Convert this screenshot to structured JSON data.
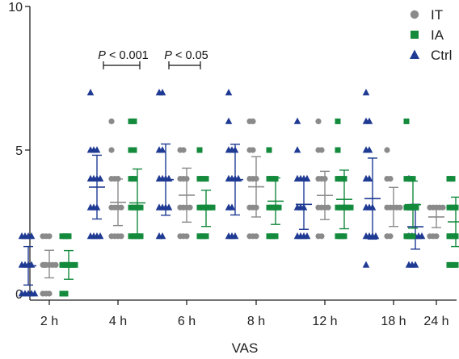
{
  "chart_data": {
    "type": "scatter",
    "xlabel": "VAS",
    "ylabel": "",
    "ylim": [
      0,
      10
    ],
    "yticks": [
      "0",
      "5",
      "10"
    ],
    "categories": [
      "2 h",
      "4 h",
      "6 h",
      "8 h",
      "12 h",
      "18 h",
      "24 h"
    ],
    "legend_position": "top-right",
    "grid": false,
    "annotations": [
      {
        "prefix": "P",
        "text": " < 0.001",
        "from": "4 h",
        "to": "6 h",
        "scope": "IT vs Ctrl"
      },
      {
        "prefix": "P",
        "text": " < 0.05",
        "from": "6 h",
        "to": "8 h",
        "scope": "IT vs Ctrl"
      }
    ],
    "series": [
      {
        "name": "Ctrl",
        "color": "#1f3a93",
        "marker": "triangle",
        "points": [
          [
            0,
            0,
            0,
            0,
            0,
            1,
            1,
            1,
            1,
            2,
            2,
            2,
            2
          ],
          [
            2,
            2,
            2,
            2,
            3,
            3,
            3,
            4,
            4,
            4,
            4,
            5,
            5,
            5,
            7
          ],
          [
            2,
            2,
            3,
            3,
            3,
            3,
            4,
            4,
            4,
            4,
            5,
            5,
            7,
            7
          ],
          [
            2,
            2,
            2,
            3,
            3,
            4,
            4,
            4,
            4,
            5,
            5,
            5,
            6,
            7
          ],
          [
            2,
            2,
            2,
            2,
            3,
            3,
            3,
            4,
            4,
            4,
            4,
            5,
            6
          ],
          [
            1,
            2,
            2,
            2,
            2,
            3,
            3,
            3,
            4,
            4,
            5,
            5,
            6,
            6,
            7
          ],
          [
            1,
            1,
            1,
            2,
            2,
            2,
            2,
            2,
            3,
            3,
            3,
            4
          ]
        ],
        "mean": [
          0.97,
          3.71,
          3.97,
          3.97,
          3.11,
          3.31,
          2.33
        ],
        "sd": [
          0.67,
          1.11,
          1.24,
          1.23,
          0.87,
          1.41,
          0.78
        ]
      },
      {
        "name": "IT",
        "color": "#8a8a8a",
        "marker": "circle",
        "points": [
          [
            0,
            0,
            0,
            1,
            1,
            1,
            1,
            1,
            1,
            2,
            2,
            2
          ],
          [
            2,
            2,
            2,
            2,
            3,
            3,
            3,
            3,
            4,
            4,
            4,
            5,
            6
          ],
          [
            2,
            2,
            2,
            3,
            3,
            3,
            3,
            4,
            4,
            4,
            5,
            5
          ],
          [
            2,
            2,
            2,
            3,
            3,
            3,
            4,
            4,
            4,
            5,
            5,
            6,
            6
          ],
          [
            2,
            2,
            3,
            3,
            3,
            3,
            4,
            4,
            4,
            5,
            5,
            6
          ],
          [
            2,
            2,
            3,
            3,
            3,
            3,
            3,
            4,
            4,
            5
          ],
          [
            2,
            2,
            2,
            3,
            3,
            3,
            3,
            3
          ]
        ],
        "mean": [
          1.03,
          3.18,
          3.43,
          3.72,
          3.42,
          3.02,
          2.67
        ],
        "sd": [
          0.48,
          0.81,
          0.94,
          1.05,
          0.84,
          0.68,
          0.37
        ]
      },
      {
        "name": "IA",
        "color": "#138a3c",
        "marker": "square",
        "points": [
          [
            0,
            0,
            1,
            1,
            1,
            1,
            1,
            1,
            1,
            2,
            2,
            2
          ],
          [
            2,
            2,
            2,
            2,
            3,
            3,
            3,
            3,
            4,
            4,
            5,
            5,
            6,
            6
          ],
          [
            2,
            2,
            2,
            3,
            3,
            3,
            3,
            3,
            4,
            4,
            4,
            5
          ],
          [
            2,
            2,
            2,
            3,
            3,
            3,
            3,
            4,
            4,
            4,
            5
          ],
          [
            2,
            2,
            2,
            3,
            3,
            3,
            3,
            3,
            4,
            4,
            4,
            5,
            6
          ],
          [
            2,
            2,
            2,
            3,
            3,
            3,
            3,
            4,
            4,
            4,
            6
          ],
          [
            1,
            1,
            1,
            2,
            2,
            2,
            3,
            3,
            3,
            4,
            4
          ]
        ],
        "mean": [
          1.0,
          3.16,
          2.97,
          3.22,
          3.28,
          3.1,
          2.5
        ],
        "sd": [
          0.5,
          1.18,
          0.63,
          0.81,
          1.02,
          0.82,
          0.86
        ]
      }
    ]
  }
}
